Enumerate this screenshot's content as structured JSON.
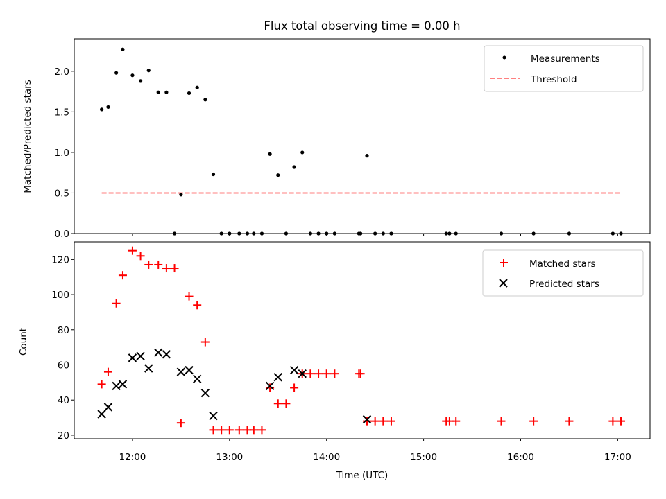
{
  "figure": {
    "title": "Flux total observing time = 0.00 h"
  },
  "chart_data": [
    {
      "type": "scatter",
      "ylabel": "Matched/Predicted stars",
      "xlim": [
        "11:24",
        "17:20"
      ],
      "ylim": [
        0,
        2.4
      ],
      "y_ticks": [
        0.0,
        0.5,
        1.0,
        1.5,
        2.0
      ],
      "x_tick_times": [
        "12:00",
        "13:00",
        "14:00",
        "15:00",
        "16:00",
        "17:00"
      ],
      "legend": {
        "placement": "top-right",
        "entries": [
          "Measurements",
          "Threshold"
        ]
      },
      "colors": {
        "measurements": "#000000",
        "threshold": "#ff8080"
      },
      "series": [
        {
          "name": "Measurements",
          "points": [
            [
              "11:41",
              1.53
            ],
            [
              "11:45",
              1.56
            ],
            [
              "11:50",
              1.98
            ],
            [
              "11:54",
              2.27
            ],
            [
              "12:00",
              1.95
            ],
            [
              "12:05",
              1.88
            ],
            [
              "12:10",
              2.01
            ],
            [
              "12:16",
              1.74
            ],
            [
              "12:21",
              1.74
            ],
            [
              "12:26",
              0.0
            ],
            [
              "12:30",
              0.48
            ],
            [
              "12:35",
              1.73
            ],
            [
              "12:40",
              1.8
            ],
            [
              "12:45",
              1.65
            ],
            [
              "12:50",
              0.73
            ],
            [
              "12:55",
              0.0
            ],
            [
              "13:00",
              0.0
            ],
            [
              "13:06",
              0.0
            ],
            [
              "13:11",
              0.0
            ],
            [
              "13:15",
              0.0
            ],
            [
              "13:20",
              0.0
            ],
            [
              "13:25",
              0.98
            ],
            [
              "13:30",
              0.72
            ],
            [
              "13:35",
              0.0
            ],
            [
              "13:40",
              0.82
            ],
            [
              "13:45",
              1.0
            ],
            [
              "13:50",
              0.0
            ],
            [
              "13:55",
              0.0
            ],
            [
              "14:00",
              0.0
            ],
            [
              "14:05",
              0.0
            ],
            [
              "14:20",
              0.0
            ],
            [
              "14:21",
              0.0
            ],
            [
              "14:25",
              0.96
            ],
            [
              "14:30",
              0.0
            ],
            [
              "14:35",
              0.0
            ],
            [
              "14:40",
              0.0
            ],
            [
              "15:14",
              0.0
            ],
            [
              "15:16",
              0.0
            ],
            [
              "15:20",
              0.0
            ],
            [
              "15:48",
              0.0
            ],
            [
              "16:08",
              0.0
            ],
            [
              "16:30",
              0.0
            ],
            [
              "16:57",
              0.0
            ],
            [
              "17:02",
              0.0
            ]
          ]
        },
        {
          "name": "Threshold",
          "style": "dashed",
          "points": [
            [
              "11:41",
              0.5
            ],
            [
              "17:02",
              0.5
            ]
          ]
        }
      ]
    },
    {
      "type": "scatter",
      "ylabel": "Count",
      "xlabel": "Time (UTC)",
      "xlim": [
        "11:24",
        "17:20"
      ],
      "ylim": [
        18,
        130
      ],
      "y_ticks": [
        20,
        40,
        60,
        80,
        100,
        120
      ],
      "x_tick_labels": [
        "12:00",
        "13:00",
        "14:00",
        "15:00",
        "16:00",
        "17:00"
      ],
      "legend": {
        "placement": "top-right",
        "entries": [
          "Matched stars",
          "Predicted stars"
        ]
      },
      "colors": {
        "matched": "#ff0000",
        "predicted": "#000000"
      },
      "series": [
        {
          "name": "Matched stars",
          "marker": "plus",
          "points": [
            [
              "11:41",
              49
            ],
            [
              "11:45",
              56
            ],
            [
              "11:50",
              95
            ],
            [
              "11:54",
              111
            ],
            [
              "12:00",
              125
            ],
            [
              "12:05",
              122
            ],
            [
              "12:10",
              117
            ],
            [
              "12:16",
              117
            ],
            [
              "12:21",
              115
            ],
            [
              "12:26",
              115
            ],
            [
              "12:30",
              27
            ],
            [
              "12:35",
              99
            ],
            [
              "12:40",
              94
            ],
            [
              "12:45",
              73
            ],
            [
              "12:50",
              23
            ],
            [
              "12:55",
              23
            ],
            [
              "13:00",
              23
            ],
            [
              "13:06",
              23
            ],
            [
              "13:11",
              23
            ],
            [
              "13:15",
              23
            ],
            [
              "13:20",
              23
            ],
            [
              "13:25",
              47
            ],
            [
              "13:30",
              38
            ],
            [
              "13:35",
              38
            ],
            [
              "13:40",
              47
            ],
            [
              "13:45",
              55
            ],
            [
              "13:50",
              55
            ],
            [
              "13:55",
              55
            ],
            [
              "14:00",
              55
            ],
            [
              "14:05",
              55
            ],
            [
              "14:20",
              55
            ],
            [
              "14:21",
              55
            ],
            [
              "14:25",
              28
            ],
            [
              "14:30",
              28
            ],
            [
              "14:35",
              28
            ],
            [
              "14:40",
              28
            ],
            [
              "15:14",
              28
            ],
            [
              "15:16",
              28
            ],
            [
              "15:20",
              28
            ],
            [
              "15:48",
              28
            ],
            [
              "16:08",
              28
            ],
            [
              "16:30",
              28
            ],
            [
              "16:57",
              28
            ],
            [
              "17:02",
              28
            ]
          ]
        },
        {
          "name": "Predicted stars",
          "marker": "x",
          "points": [
            [
              "11:41",
              32
            ],
            [
              "11:45",
              36
            ],
            [
              "11:50",
              48
            ],
            [
              "11:54",
              49
            ],
            [
              "12:00",
              64
            ],
            [
              "12:05",
              65
            ],
            [
              "12:10",
              58
            ],
            [
              "12:16",
              67
            ],
            [
              "12:21",
              66
            ],
            [
              "12:30",
              56
            ],
            [
              "12:35",
              57
            ],
            [
              "12:40",
              52
            ],
            [
              "12:45",
              44
            ],
            [
              "12:50",
              31
            ],
            [
              "13:25",
              48
            ],
            [
              "13:30",
              53
            ],
            [
              "13:40",
              57
            ],
            [
              "13:45",
              55
            ],
            [
              "14:25",
              29
            ]
          ]
        }
      ]
    }
  ]
}
